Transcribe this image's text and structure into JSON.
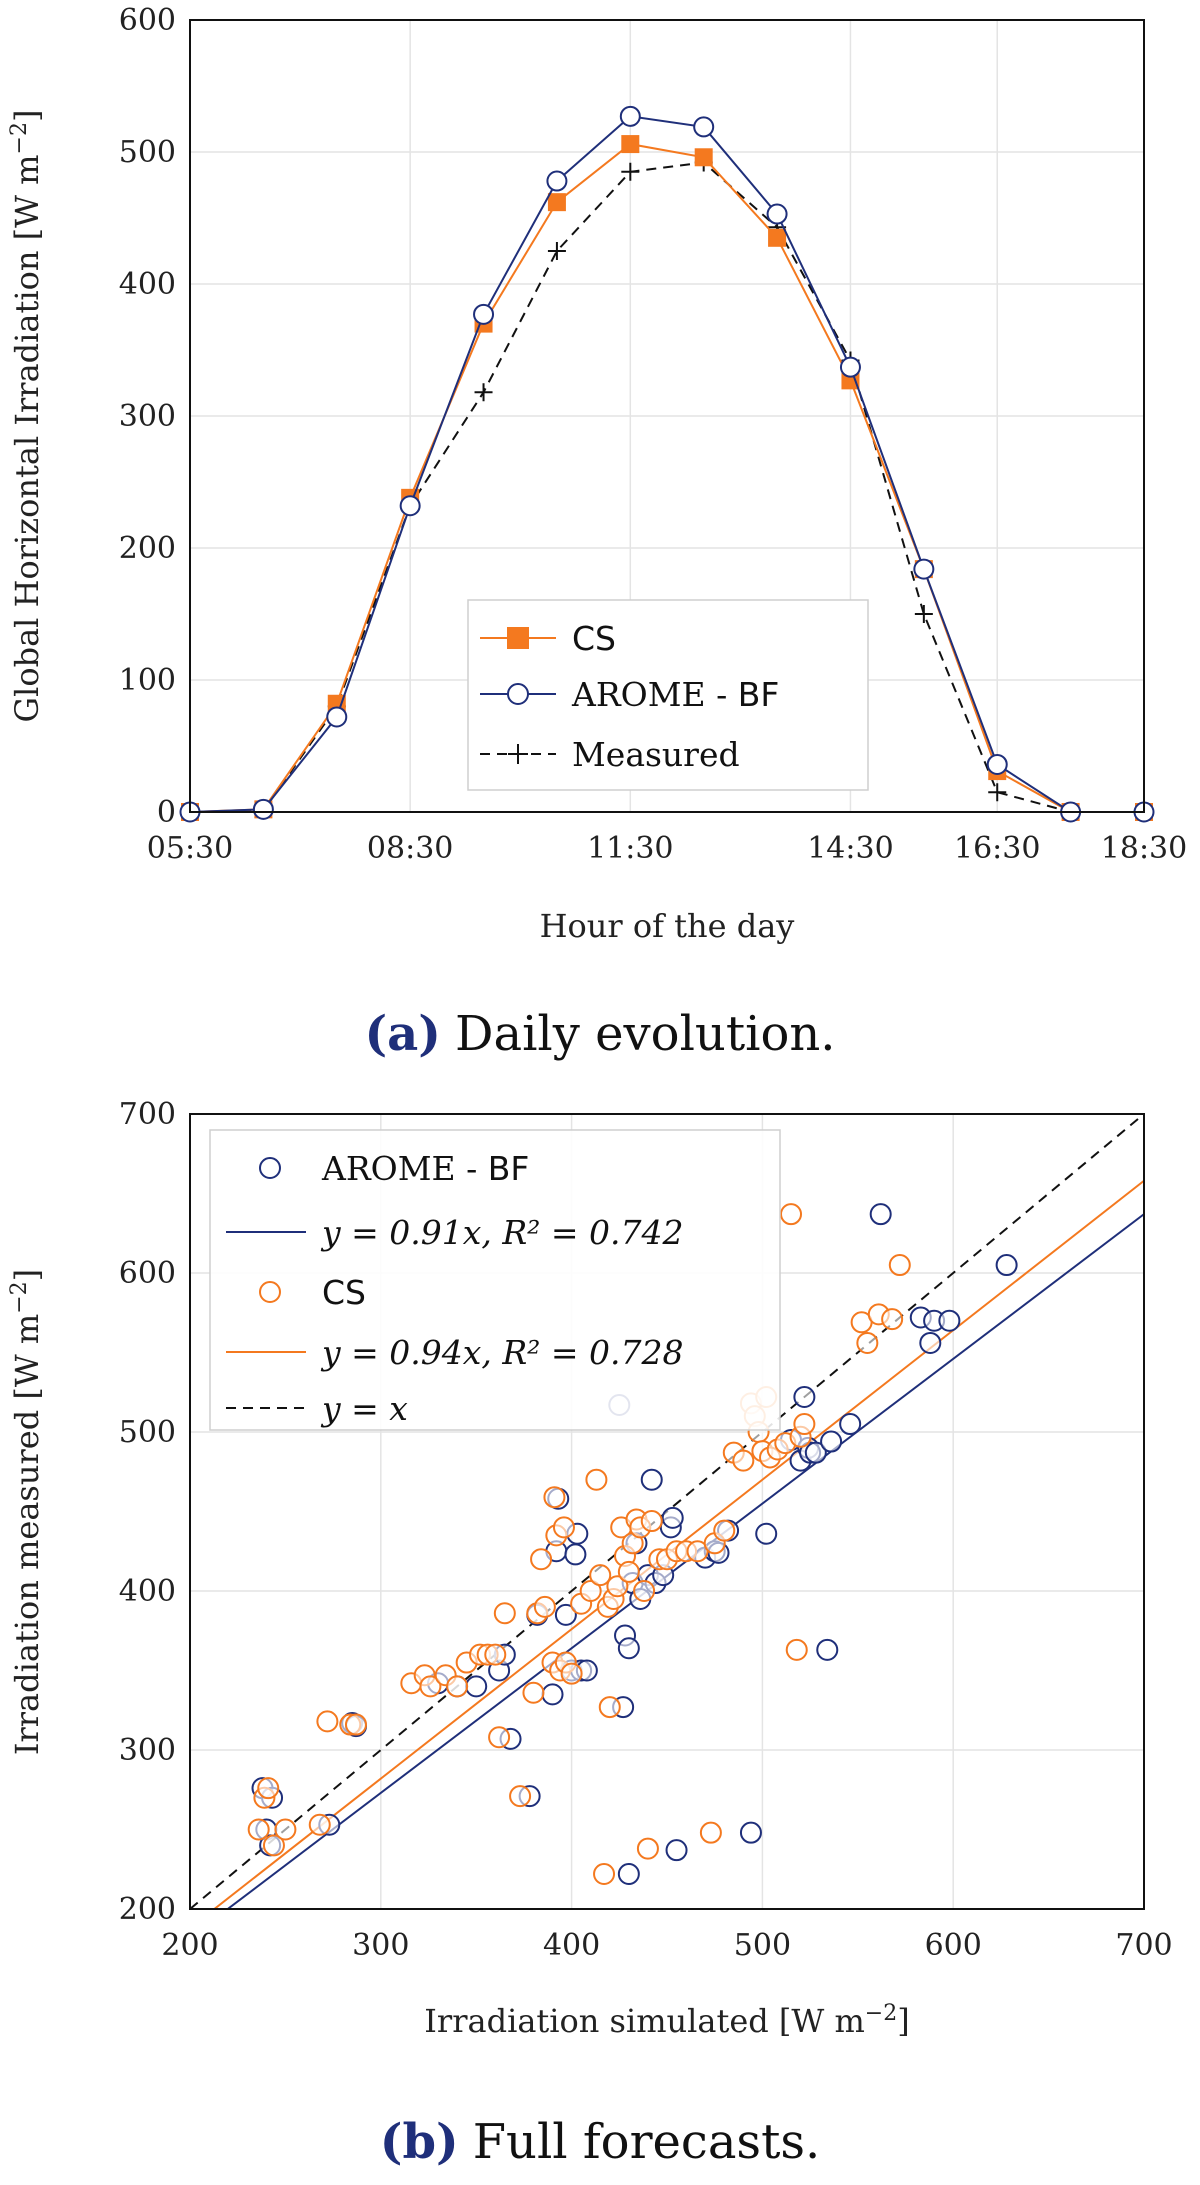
{
  "colors": {
    "arome": "#1f2f7a",
    "cs": "#f4791f",
    "measured": "#111111"
  },
  "chart_data": [
    {
      "type": "line",
      "caption_label": "(a)",
      "caption_text": "Daily evolution.",
      "xlabel": "Hour of the day",
      "ylabel": "Global Horizontal Irradiation [W m",
      "ylabel_sup": "−2",
      "ylabel_end": "]",
      "ylim": [
        0,
        600
      ],
      "yticks": [
        0,
        100,
        200,
        300,
        400,
        500,
        600
      ],
      "xlim": [
        5.5,
        18.5
      ],
      "xticks": [
        {
          "v": 5.5,
          "label": "05:30"
        },
        {
          "v": 8.5,
          "label": "08:30"
        },
        {
          "v": 11.5,
          "label": "11:30"
        },
        {
          "v": 14.5,
          "label": "14:30"
        },
        {
          "v": 16.5,
          "label": "16:30"
        },
        {
          "v": 18.5,
          "label": "18:30"
        }
      ],
      "x": [
        5.5,
        6.5,
        7.5,
        8.5,
        9.5,
        10.5,
        11.5,
        12.5,
        13.5,
        14.5,
        15.5,
        16.5,
        17.5,
        18.5
      ],
      "series": [
        {
          "name": "CS",
          "marker": "square",
          "color": "cs",
          "values": [
            0,
            2,
            82,
            238,
            370,
            462,
            506,
            496,
            435,
            327,
            184,
            31,
            0,
            0
          ]
        },
        {
          "name": "AROME - BF",
          "marker": "circle",
          "color": "arome",
          "values": [
            0,
            2,
            72,
            232,
            377,
            478,
            527,
            519,
            453,
            337,
            184,
            36,
            0,
            0
          ]
        },
        {
          "name": "Measured",
          "marker": "plus",
          "color": "measured",
          "values": [
            0,
            1,
            80,
            232,
            318,
            425,
            485,
            492,
            443,
            342,
            150,
            15,
            0,
            0
          ]
        }
      ],
      "legend": {
        "cs": "CS",
        "arome_prefix": "AROME - ",
        "arome_suffix": "BF",
        "measured": "Measured"
      }
    },
    {
      "type": "scatter",
      "caption_label": "(b)",
      "caption_text": "Full forecasts.",
      "xlabel": "Irradiation simulated [W m",
      "xlabel_sup": "−2",
      "xlabel_end": "]",
      "ylabel": "Irradiation measured [W m",
      "ylabel_sup": "−2",
      "ylabel_end": "]",
      "xlim": [
        200,
        700
      ],
      "ylim": [
        200,
        700
      ],
      "xticks": [
        200,
        300,
        400,
        500,
        600,
        700
      ],
      "yticks": [
        200,
        300,
        400,
        500,
        600,
        700
      ],
      "fits": [
        {
          "name": "AROME - BF fit",
          "slope": 0.91,
          "color": "arome"
        },
        {
          "name": "CS fit",
          "slope": 0.94,
          "color": "cs"
        },
        {
          "name": "y = x",
          "slope": 1.0,
          "color": "measured"
        }
      ],
      "legend": {
        "arome_prefix": "AROME - ",
        "arome_suffix": "BF",
        "arome_fit": "y = 0.91x, R² = 0.742",
        "cs": "CS",
        "cs_fit": "y = 0.94x, R² = 0.728",
        "identity": "y = x"
      },
      "series": [
        {
          "name": "AROME - BF",
          "color": "arome",
          "points": [
            [
              238,
              276
            ],
            [
              240,
              250
            ],
            [
              242,
              240
            ],
            [
              243,
              270
            ],
            [
              273,
              253
            ],
            [
              285,
              317
            ],
            [
              287,
              315
            ],
            [
              330,
              342
            ],
            [
              340,
              340
            ],
            [
              350,
              340
            ],
            [
              362,
              350
            ],
            [
              365,
              360
            ],
            [
              368,
              307
            ],
            [
              378,
              271
            ],
            [
              382,
              385
            ],
            [
              390,
              335
            ],
            [
              392,
              425
            ],
            [
              393,
              458
            ],
            [
              397,
              385
            ],
            [
              400,
              350
            ],
            [
              402,
              423
            ],
            [
              403,
              436
            ],
            [
              405,
              350
            ],
            [
              408,
              350
            ],
            [
              425,
              517
            ],
            [
              427,
              327
            ],
            [
              428,
              372
            ],
            [
              430,
              364
            ],
            [
              430,
              222
            ],
            [
              432,
              405
            ],
            [
              434,
              430
            ],
            [
              436,
              395
            ],
            [
              440,
              410
            ],
            [
              442,
              470
            ],
            [
              444,
              405
            ],
            [
              448,
              410
            ],
            [
              452,
              440
            ],
            [
              453,
              446
            ],
            [
              455,
              237
            ],
            [
              470,
              421
            ],
            [
              475,
              425
            ],
            [
              477,
              424
            ],
            [
              482,
              438
            ],
            [
              494,
              248
            ],
            [
              502,
              436
            ],
            [
              515,
              495
            ],
            [
              520,
              482
            ],
            [
              522,
              522
            ],
            [
              524,
              490
            ],
            [
              525,
              487
            ],
            [
              528,
              487
            ],
            [
              534,
              363
            ],
            [
              536,
              494
            ],
            [
              546,
              505
            ],
            [
              562,
              637
            ],
            [
              583,
              572
            ],
            [
              588,
              556
            ],
            [
              590,
              570
            ],
            [
              598,
              570
            ],
            [
              628,
              605
            ]
          ]
        },
        {
          "name": "CS",
          "color": "cs",
          "points": [
            [
              236,
              250
            ],
            [
              239,
              270
            ],
            [
              241,
              276
            ],
            [
              244,
              240
            ],
            [
              250,
              250
            ],
            [
              268,
              253
            ],
            [
              272,
              318
            ],
            [
              284,
              316
            ],
            [
              287,
              316
            ],
            [
              316,
              342
            ],
            [
              323,
              347
            ],
            [
              326,
              340
            ],
            [
              334,
              347
            ],
            [
              340,
              340
            ],
            [
              345,
              355
            ],
            [
              352,
              360
            ],
            [
              356,
              360
            ],
            [
              360,
              360
            ],
            [
              362,
              308
            ],
            [
              365,
              386
            ],
            [
              373,
              271
            ],
            [
              380,
              336
            ],
            [
              382,
              386
            ],
            [
              384,
              420
            ],
            [
              386,
              390
            ],
            [
              390,
              355
            ],
            [
              391,
              459
            ],
            [
              392,
              435
            ],
            [
              394,
              350
            ],
            [
              396,
              440
            ],
            [
              397,
              355
            ],
            [
              400,
              348
            ],
            [
              405,
              392
            ],
            [
              410,
              400
            ],
            [
              413,
              470
            ],
            [
              415,
              410
            ],
            [
              417,
              222
            ],
            [
              419,
              390
            ],
            [
              420,
              327
            ],
            [
              422,
              395
            ],
            [
              424,
              403
            ],
            [
              426,
              440
            ],
            [
              428,
              422
            ],
            [
              430,
              412
            ],
            [
              432,
              430
            ],
            [
              434,
              445
            ],
            [
              436,
              440
            ],
            [
              438,
              400
            ],
            [
              440,
              238
            ],
            [
              442,
              444
            ],
            [
              446,
              420
            ],
            [
              450,
              420
            ],
            [
              455,
              425
            ],
            [
              460,
              425
            ],
            [
              466,
              425
            ],
            [
              473,
              248
            ],
            [
              475,
              430
            ],
            [
              480,
              438
            ],
            [
              485,
              487
            ],
            [
              490,
              482
            ],
            [
              494,
              518
            ],
            [
              496,
              510
            ],
            [
              498,
              500
            ],
            [
              500,
              488
            ],
            [
              502,
              522
            ],
            [
              504,
              484
            ],
            [
              508,
              489
            ],
            [
              512,
              493
            ],
            [
              515,
              637
            ],
            [
              518,
              363
            ],
            [
              520,
              497
            ],
            [
              522,
              505
            ],
            [
              552,
              569
            ],
            [
              555,
              556
            ],
            [
              561,
              574
            ],
            [
              568,
              571
            ],
            [
              572,
              605
            ]
          ]
        }
      ]
    }
  ]
}
